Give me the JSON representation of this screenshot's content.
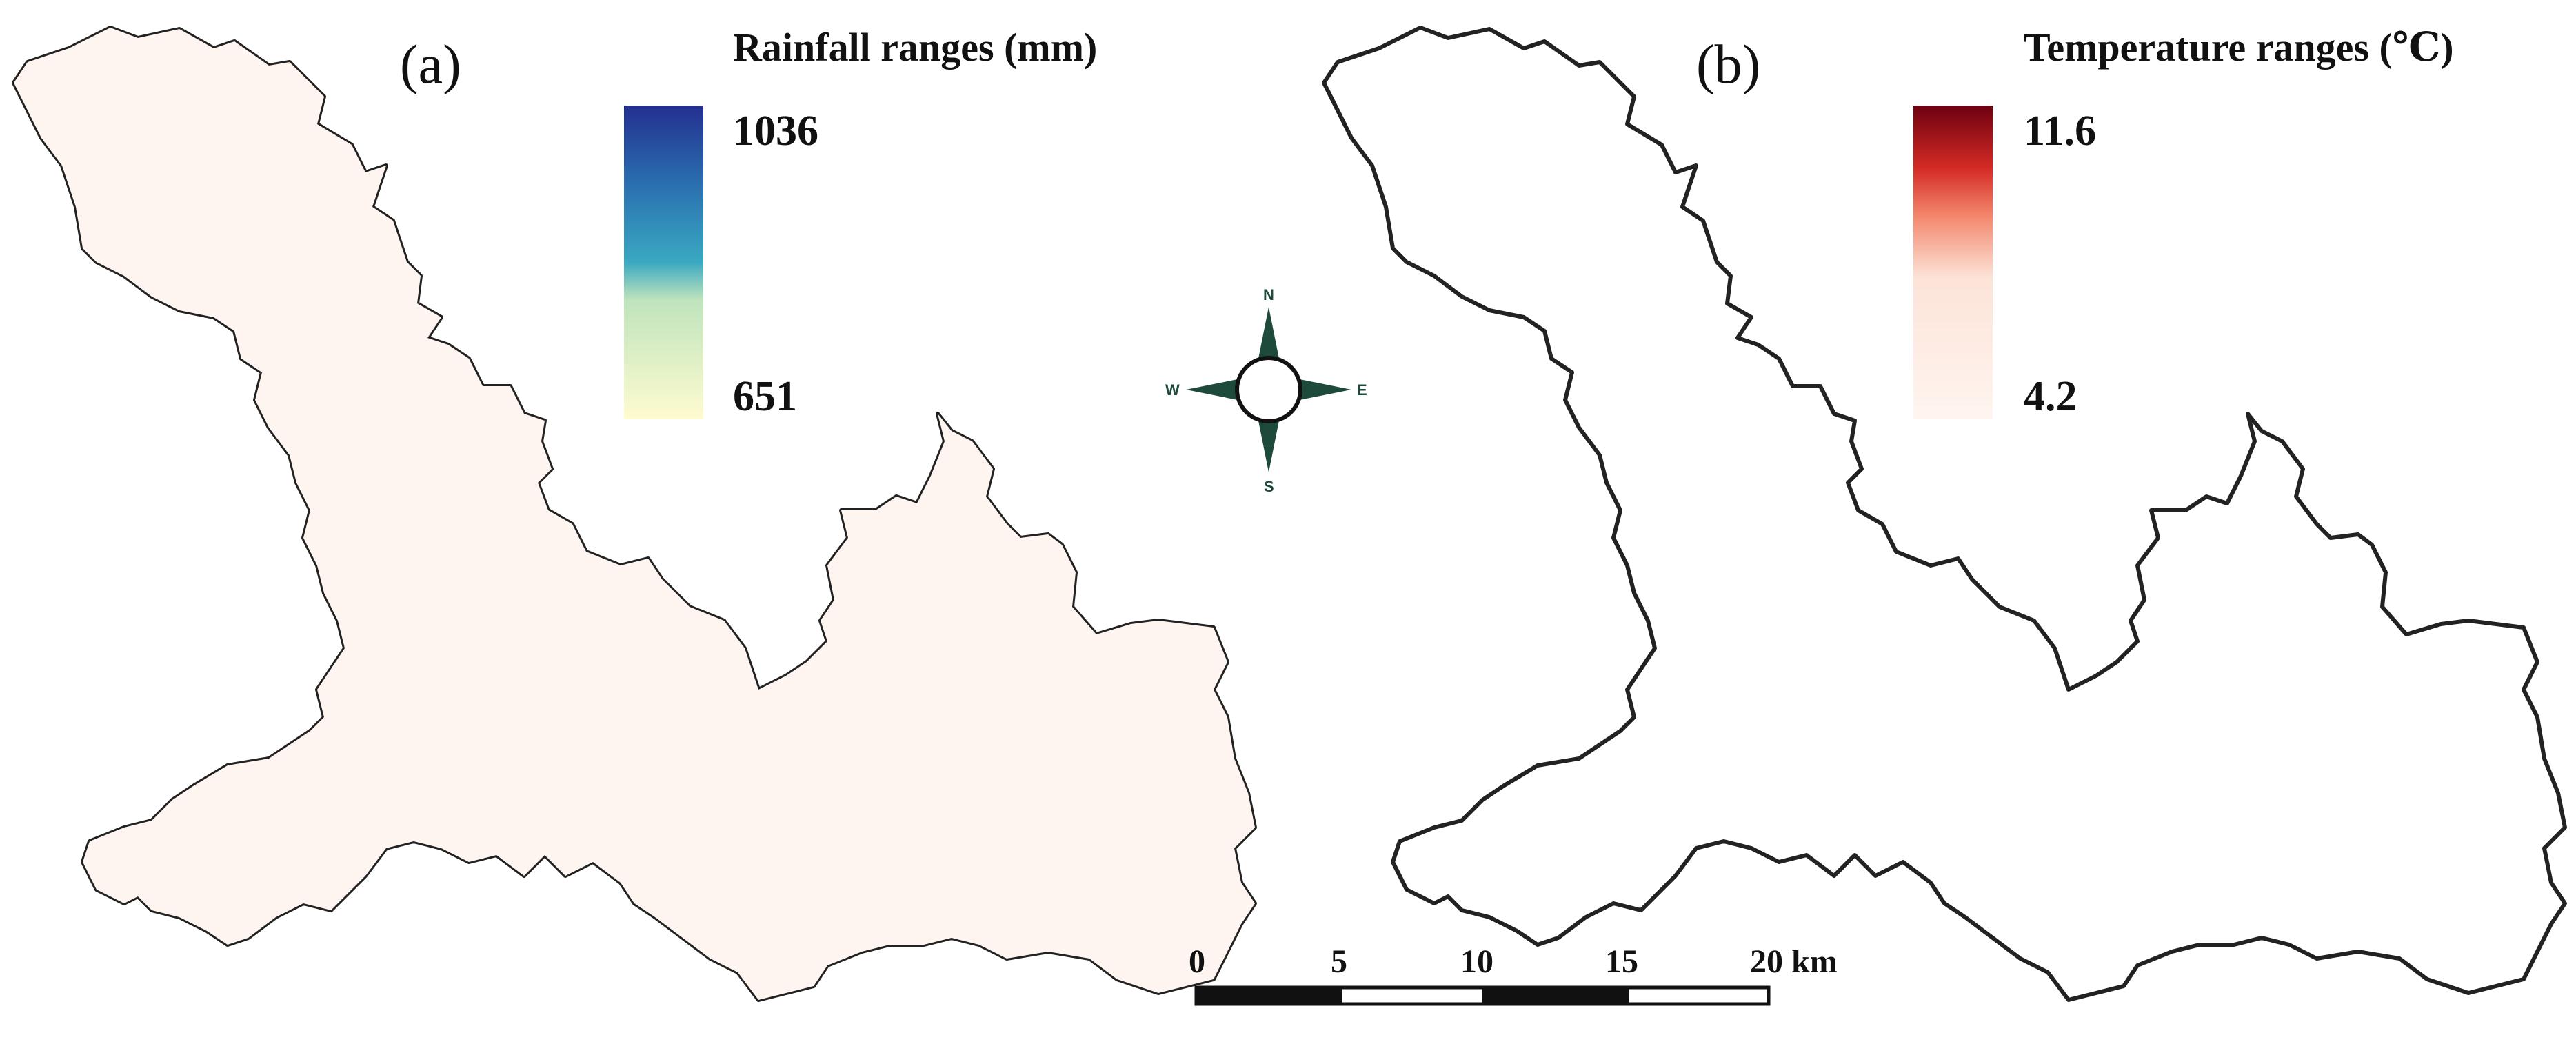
{
  "panels": [
    {
      "label": "(a)",
      "legend": {
        "title": "Rainfall ranges (mm)",
        "max": "1036",
        "min": "651",
        "colors": [
          "#232f8f",
          "#2a6fb0",
          "#3aa9c2",
          "#edf7c4",
          "#fffbd0"
        ]
      }
    },
    {
      "label": "(b)",
      "legend": {
        "title": "Temperature ranges (℃)",
        "max": "11.6",
        "min": "4.2",
        "colors": [
          "#6e0010",
          "#d42b25",
          "#f3866b",
          "#fce3d8",
          "#fff5f0"
        ]
      }
    }
  ],
  "compass": {
    "north": "N",
    "south": "S",
    "east": "E",
    "west": "W"
  },
  "scale_bar": {
    "ticks": [
      "0",
      "5",
      "10",
      "15",
      "20 km"
    ]
  }
}
